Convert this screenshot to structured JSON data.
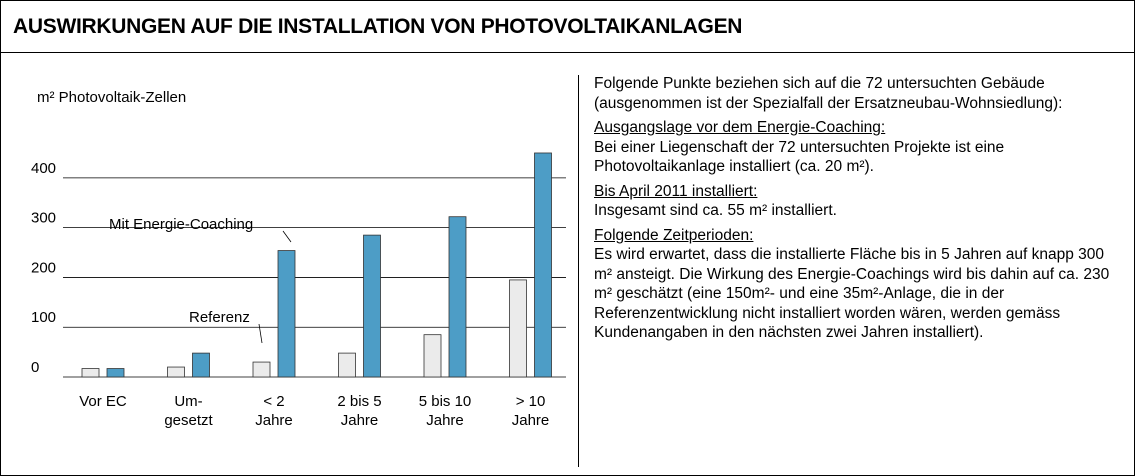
{
  "title": "AUSWIRKUNGEN AUF DIE INSTALLATION VON PHOTOVOLTAIKANLAGEN",
  "chart_data": {
    "type": "bar",
    "ylabel": "m² Photovoltaik-Zellen",
    "categories": [
      "Vor EC",
      "Um-\ngesetzt",
      "< 2\nJahre",
      "2 bis 5\nJahre",
      "5 bis 10\nJahre",
      "> 10\nJahre"
    ],
    "series": [
      {
        "name": "Referenz",
        "color": "#ebebeb",
        "values": [
          17,
          20,
          30,
          48,
          85,
          195
        ]
      },
      {
        "name": "Mit Energie-Coaching",
        "color": "#4d9dc6",
        "values": [
          17,
          48,
          254,
          285,
          322,
          450
        ]
      }
    ],
    "ylim": [
      0,
      460
    ],
    "yticks": [
      0,
      100,
      200,
      300,
      400
    ],
    "grid": true
  },
  "text": {
    "intro": "Folgende Punkte beziehen sich auf die 72 untersuchten Gebäude (ausgenommen ist der Spezialfall der Ersatzneubau-Wohnsiedlung):",
    "sections": [
      {
        "heading": "Ausgangslage vor dem Energie-Coaching:",
        "body": "Bei einer Liegenschaft der 72 untersuchten Projekte ist eine Photovoltaikanlage installiert (ca. 20 m²)."
      },
      {
        "heading": "Bis April 2011 installiert:",
        "body": "Insgesamt sind ca. 55 m² installiert."
      },
      {
        "heading": "Folgende Zeitperioden:",
        "body": "Es wird erwartet, dass die installierte Fläche bis in 5 Jahren auf knapp 300 m² ansteigt. Die Wirkung des Energie-Coachings wird bis dahin auf ca. 230 m² geschätzt (eine 150m²- und eine 35m²-Anlage, die in der Referenzentwicklung nicht installiert worden wären, werden gemäss Kundenangaben in den nächsten zwei Jahren installiert)."
      }
    ]
  }
}
